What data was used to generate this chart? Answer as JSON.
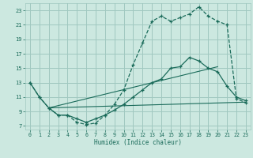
{
  "bg_color": "#cce8e0",
  "grid_color": "#a0c8c0",
  "line_color": "#1a6b5a",
  "xlabel": "Humidex (Indice chaleur)",
  "xlim": [
    -0.5,
    23.5
  ],
  "ylim": [
    6.5,
    24.0
  ],
  "yticks": [
    7,
    9,
    11,
    13,
    15,
    17,
    19,
    21,
    23
  ],
  "xticks": [
    0,
    1,
    2,
    3,
    4,
    5,
    6,
    7,
    8,
    9,
    10,
    11,
    12,
    13,
    14,
    15,
    16,
    17,
    18,
    19,
    20,
    21,
    22,
    23
  ],
  "curve_dashed_x": [
    0,
    1,
    2,
    3,
    4,
    5,
    6,
    7,
    8,
    9,
    10,
    11,
    12,
    13,
    14,
    15,
    16,
    17,
    18,
    19,
    20,
    21,
    22,
    23
  ],
  "curve_dashed_y": [
    13,
    11,
    9.5,
    8.5,
    8.5,
    7.5,
    7.2,
    7.4,
    8.5,
    10.0,
    12.0,
    15.5,
    18.5,
    21.5,
    22.2,
    21.5,
    22.0,
    22.5,
    23.5,
    22.2,
    21.5,
    21.0,
    10.8,
    10.2
  ],
  "curve_solid_x": [
    0,
    1,
    2,
    3,
    4,
    5,
    6,
    7,
    8,
    9,
    10,
    11,
    12,
    13,
    14,
    15,
    16,
    17,
    18,
    19,
    20,
    21,
    22,
    23
  ],
  "curve_solid_y": [
    13,
    11,
    9.5,
    8.5,
    8.5,
    8.0,
    7.5,
    8.0,
    8.5,
    9.2,
    10.0,
    11.0,
    12.0,
    13.0,
    13.5,
    15.0,
    15.2,
    16.5,
    16.0,
    15.0,
    14.5,
    12.5,
    11.0,
    10.5
  ],
  "line1_x": [
    2,
    20
  ],
  "line1_y": [
    9.5,
    15.2
  ],
  "line2_x": [
    2,
    23
  ],
  "line2_y": [
    9.5,
    10.3
  ],
  "marker_symbol": "+"
}
